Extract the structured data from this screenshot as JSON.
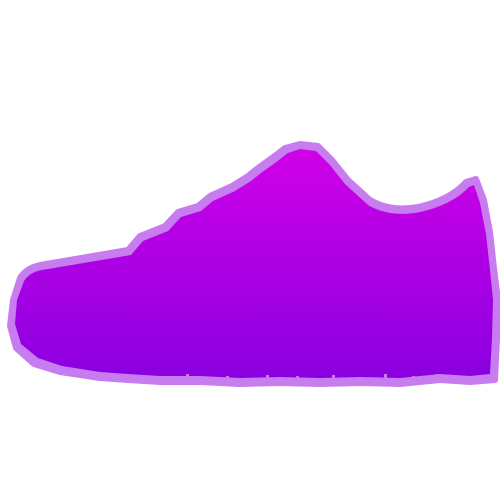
{
  "image": {
    "subject_icon": "sneaker-silhouette-icon",
    "colors": {
      "background": "#ffffff",
      "gradient_top": "#d000e8",
      "gradient_bottom": "#8a00e0",
      "outline": "#c77cf0"
    }
  }
}
